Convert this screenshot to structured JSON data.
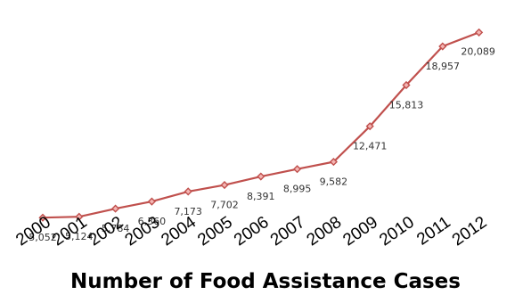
{
  "chart_data": {
    "type": "line",
    "title": "Number of Food Assistance Cases",
    "x": [
      "2000",
      "2001",
      "2002",
      "2003",
      "2004",
      "2005",
      "2006",
      "2007",
      "2008",
      "2009",
      "2010",
      "2011",
      "2012"
    ],
    "series": [
      {
        "values": [
          5052,
          5124,
          5784,
          6360,
          7173,
          7702,
          8391,
          8995,
          9582,
          12471,
          15813,
          18957,
          20089
        ],
        "labels": [
          "5,052",
          "5,124",
          "5,784",
          "6,360",
          "7,173",
          "7,702",
          "8,391",
          "8,995",
          "9,582",
          "12,471",
          "15,813",
          "18,957",
          "20,089"
        ]
      }
    ],
    "ylim": [
      0,
      22000
    ],
    "grid": false,
    "legend": "none",
    "colors": {
      "line": "#c0504d",
      "marker_fill": "#f4b6b4"
    }
  }
}
